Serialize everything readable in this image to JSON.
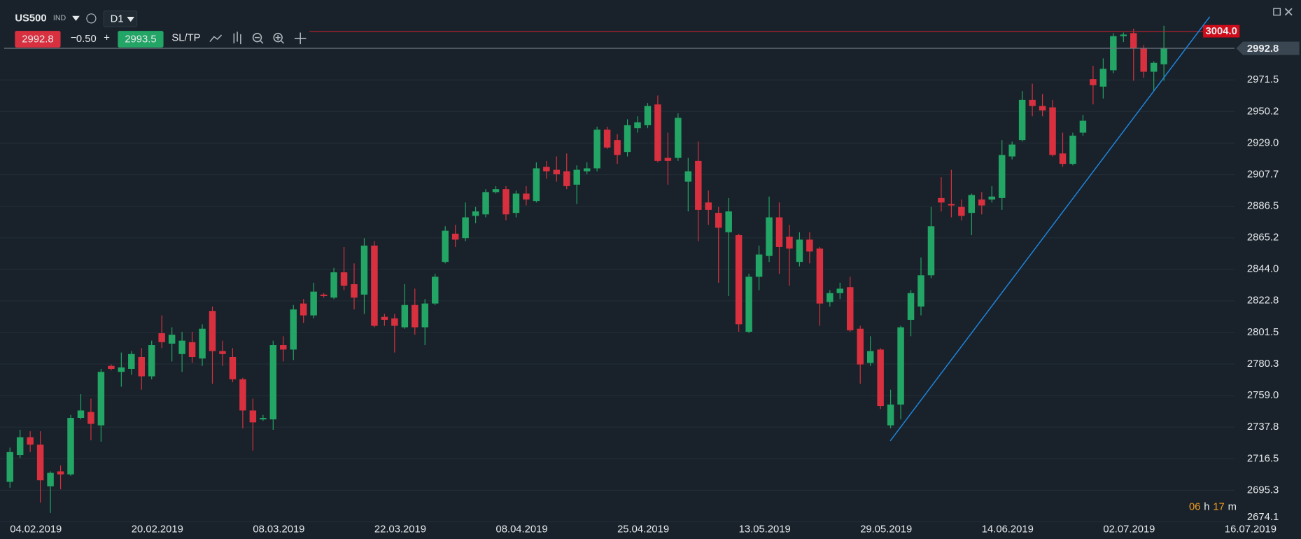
{
  "header": {
    "symbol": "US500",
    "type": "IND",
    "timeframe": "D1"
  },
  "trade": {
    "bid": "2992.8",
    "volume": "0.50",
    "ask": "2993.5",
    "sltp": "SL/TP"
  },
  "countdown": {
    "hours": "06",
    "h": "h",
    "minutes": "17",
    "m": "m"
  },
  "chart_data": {
    "type": "candlestick",
    "categories": [
      "04.02.2019",
      null,
      null,
      null,
      null,
      null,
      null,
      null,
      null,
      null,
      null,
      null,
      "20.02.2019",
      null,
      null,
      null,
      null,
      null,
      null,
      null,
      null,
      null,
      null,
      null,
      "08.03.2019",
      null,
      null,
      null,
      null,
      null,
      null,
      null,
      null,
      null,
      null,
      null,
      "22.03.2019",
      null,
      null,
      null,
      null,
      null,
      null,
      null,
      null,
      null,
      null,
      null,
      "08.04.2019",
      null,
      null,
      null,
      null,
      null,
      null,
      null,
      null,
      null,
      null,
      null,
      "25.04.2019",
      null,
      null,
      null,
      null,
      null,
      null,
      null,
      null,
      null,
      null,
      null,
      "13.05.2019",
      null,
      null,
      null,
      null,
      null,
      null,
      null,
      null,
      null,
      null,
      null,
      "29.05.2019",
      null,
      null,
      null,
      null,
      null,
      null,
      null,
      null,
      null,
      null,
      null,
      "14.06.2019",
      null,
      null,
      null,
      null,
      null,
      null,
      null,
      null,
      null,
      null,
      null,
      "02.07.2019",
      null,
      null,
      null,
      null,
      null,
      null,
      null,
      null,
      null,
      null,
      null,
      "16.07.2019"
    ],
    "open": [
      2701,
      2719,
      2731,
      2726,
      2698,
      2708,
      2706,
      2744,
      2748,
      2739,
      2779,
      2775,
      2777,
      2785,
      2772,
      2801,
      2794,
      2787,
      2795,
      2784,
      2816,
      2789,
      2785,
      2770,
      2749,
      2743,
      2743,
      2793,
      2790,
      2821,
      2813,
      2827,
      2825,
      2842,
      2834,
      2827,
      2860,
      2812,
      2811,
      2805,
      2820,
      2805,
      2821,
      2849,
      2868,
      2865,
      2880,
      2881,
      2896,
      2898,
      2882,
      2895,
      2890,
      2913,
      2911,
      2910,
      2901,
      2910,
      2912,
      2938,
      2931,
      2923,
      2939,
      2941,
      2955,
      2919,
      2919,
      2903,
      2917,
      2889,
      2882,
      2869,
      2867,
      2802,
      2839,
      2853,
      2879,
      2866,
      2849,
      2864,
      2858,
      2822,
      2828,
      2832,
      2804,
      2781,
      2790,
      2739,
      2753,
      2810,
      2819,
      2840,
      2892,
      2888,
      2886,
      2882,
      2891,
      2891,
      2892,
      2920,
      2931,
      2958,
      2954,
      2953,
      2922,
      2915,
      2936,
      2972,
      2967,
      2978,
      3001,
      3003,
      2993,
      2977,
      2982,
      null,
      null,
      null,
      null,
      null,
      null
    ],
    "high": [
      2724,
      2736,
      2735,
      2735,
      2708,
      2712,
      2746,
      2760,
      2757,
      2777,
      2780,
      2788,
      2789,
      2791,
      2796,
      2813,
      2805,
      2802,
      2802,
      2807,
      2819,
      2796,
      2791,
      2771,
      2757,
      2746,
      2796,
      2799,
      2820,
      2824,
      2835,
      2828,
      2845,
      2859,
      2848,
      2865,
      2863,
      2814,
      2814,
      2834,
      2831,
      2824,
      2841,
      2873,
      2874,
      2889,
      2886,
      2898,
      2900,
      2900,
      2897,
      2900,
      2916,
      2917,
      2920,
      2922,
      2914,
      2916,
      2940,
      2940,
      2935,
      2945,
      2947,
      2956,
      2961,
      2936,
      2949,
      2919,
      2930,
      2897,
      2886,
      2892,
      2868,
      2841,
      2860,
      2893,
      2889,
      2874,
      2869,
      2869,
      2859,
      2830,
      2835,
      2839,
      2806,
      2799,
      2791,
      2763,
      2806,
      2830,
      2852,
      2886,
      2906,
      2911,
      2891,
      2895,
      2896,
      2900,
      2931,
      2930,
      2964,
      2969,
      2962,
      2958,
      2936,
      2936,
      2948,
      2981,
      2986,
      3003,
      3003.4,
      3006,
      2995,
      2984,
      3008,
      null,
      null,
      null,
      null,
      null,
      null
    ],
    "low": [
      2697,
      2717,
      2721,
      2687,
      2680,
      2696,
      2705,
      2743,
      2729,
      2728,
      2776,
      2765,
      2773,
      2763,
      2770,
      2791,
      2782,
      2775,
      2781,
      2779,
      2767,
      2779,
      2768,
      2737,
      2722,
      2742,
      2736,
      2782,
      2783,
      2808,
      2811,
      2825,
      2824,
      2830,
      2817,
      2814,
      2805,
      2806,
      2788,
      2804,
      2800,
      2793,
      2820,
      2848,
      2859,
      2863,
      2875,
      2879,
      2895,
      2877,
      2879,
      2887,
      2889,
      2905,
      2903,
      2898,
      2888,
      2908,
      2910,
      2925,
      2915,
      2920,
      2936,
      2939,
      2916,
      2901,
      2917,
      2883,
      2863,
      2874,
      2835,
      2826,
      2802,
      2801,
      2830,
      2849,
      2841,
      2833,
      2846,
      2848,
      2806,
      2819,
      2824,
      2802,
      2767,
      2779,
      2750,
      2737,
      2743,
      2799,
      2813,
      2838,
      2883,
      2879,
      2877,
      2867,
      2881,
      2889,
      2884,
      2918,
      2930,
      2947,
      2947,
      2920,
      2913,
      2914,
      2934,
      2955,
      2959,
      2976,
      2997,
      2971,
      2973,
      2964,
      2971,
      null,
      null,
      null,
      null,
      null,
      null
    ],
    "close": [
      2721,
      2731,
      2726,
      2702,
      2707,
      2706,
      2744,
      2749,
      2740,
      2775,
      2777,
      2778,
      2787,
      2772,
      2793,
      2795,
      2800,
      2796,
      2785,
      2804,
      2789,
      2787,
      2770,
      2749,
      2741,
      2744,
      2793,
      2790,
      2817,
      2813,
      2829,
      2826,
      2842,
      2833,
      2825,
      2860,
      2806,
      2810,
      2806,
      2820,
      2805,
      2821,
      2839,
      2870,
      2864,
      2879,
      2883,
      2896,
      2898,
      2881,
      2895,
      2891,
      2912,
      2910,
      2908,
      2900,
      2911,
      2912,
      2938,
      2926,
      2921,
      2941,
      2943,
      2954,
      2917,
      2917,
      2946,
      2910,
      2884,
      2884,
      2872,
      2883,
      2807,
      2839,
      2854,
      2879,
      2859,
      2858,
      2864,
      2856,
      2821,
      2828,
      2831,
      2803,
      2780,
      2789,
      2752,
      2753,
      2805,
      2828,
      2840,
      2873,
      2889,
      2887,
      2880,
      2894,
      2887,
      2893,
      2921,
      2928,
      2958,
      2954,
      2951,
      2921,
      2915,
      2934,
      2944,
      2968,
      2979,
      3001,
      3002,
      2993,
      2977,
      2983,
      2993,
      null,
      null,
      null,
      null,
      null,
      null
    ],
    "up_color": "#22a565",
    "down_color": "#d8303f",
    "ylim": [
      2673.8,
      3020.7
    ],
    "yticks": [
      2674.1,
      2695.3,
      2716.5,
      2737.8,
      {
        "value": 2759,
        "label": "2759.0"
      },
      2780.3,
      2801.5,
      2822.8,
      {
        "value": 2844,
        "label": "2844.0"
      },
      2865.2,
      2886.5,
      2907.7,
      {
        "value": 2929,
        "label": "2929.0"
      },
      2950.2,
      2971.5
    ],
    "grid": true,
    "current_price": 2992.8,
    "alert_level": {
      "value": 3004,
      "label": "3004.0"
    }
  }
}
